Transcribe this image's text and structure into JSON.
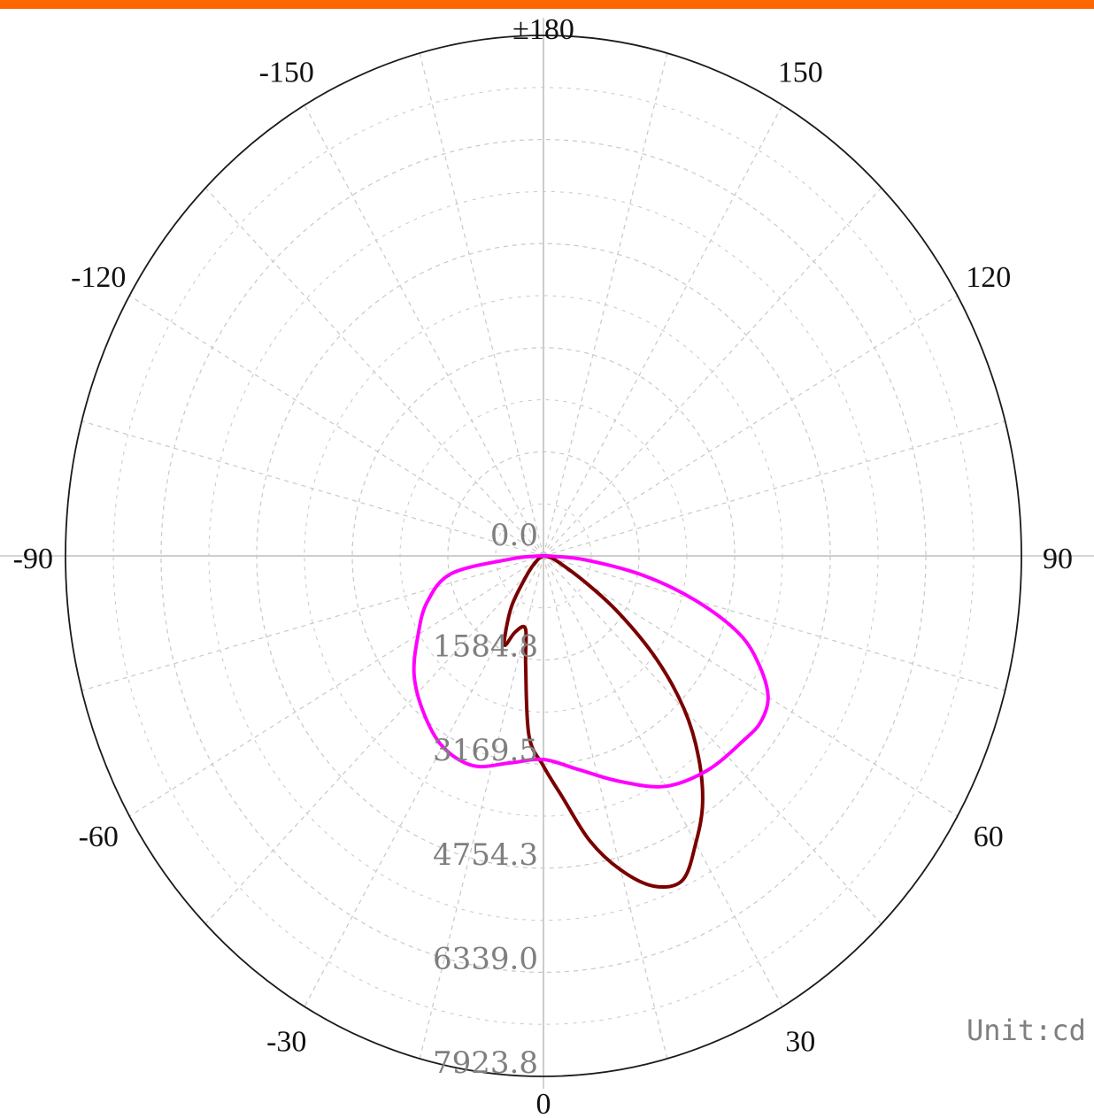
{
  "colors": {
    "top_bar": "#ff6600",
    "c0_c180_curve": "#7a0000",
    "c90_c270_curve": "#ff00ff",
    "grid": "#c8c8c8",
    "outer_circle": "#1a1a1a"
  },
  "chart_data": {
    "type": "polar",
    "unit_label": "Unit:cd",
    "radial_range": [
      0,
      7923.8
    ],
    "radial_tick_labels": [
      "0.0",
      "1584.8",
      "3169.5",
      "4754.3",
      "6339.0",
      "7923.8"
    ],
    "radial_tick_values": [
      0,
      1584.8,
      3169.5,
      4754.3,
      6339.0,
      7923.8
    ],
    "angle_tick_labels": [
      {
        "text": "0",
        "angle": 0
      },
      {
        "text": "30",
        "angle": 30
      },
      {
        "text": "60",
        "angle": 60
      },
      {
        "text": "90",
        "angle": 90
      },
      {
        "text": "120",
        "angle": 120
      },
      {
        "text": "150",
        "angle": 150
      },
      {
        "text": "±180",
        "angle": 180
      },
      {
        "text": "-150",
        "angle": -150
      },
      {
        "text": "-120",
        "angle": -120
      },
      {
        "text": "-90",
        "angle": -90
      },
      {
        "text": "-60",
        "angle": -60
      },
      {
        "text": "-30",
        "angle": -30
      }
    ],
    "angular_grid_step_deg": 15,
    "grid": true,
    "series": [
      {
        "color": "#7a0000",
        "points": [
          {
            "angle": -60,
            "value": 100
          },
          {
            "angle": -45,
            "value": 350
          },
          {
            "angle": -35,
            "value": 900
          },
          {
            "angle": -28,
            "value": 1350
          },
          {
            "angle": -25,
            "value": 1500
          },
          {
            "angle": -22,
            "value": 1250
          },
          {
            "angle": -15,
            "value": 1150
          },
          {
            "angle": -10,
            "value": 1700
          },
          {
            "angle": -5,
            "value": 2750
          },
          {
            "angle": 0,
            "value": 3200
          },
          {
            "angle": 5,
            "value": 3700
          },
          {
            "angle": 10,
            "value": 4400
          },
          {
            "angle": 15,
            "value": 4950
          },
          {
            "angle": 20,
            "value": 5350
          },
          {
            "angle": 25,
            "value": 5450
          },
          {
            "angle": 30,
            "value": 5050
          },
          {
            "angle": 35,
            "value": 4600
          },
          {
            "angle": 40,
            "value": 4000
          },
          {
            "angle": 45,
            "value": 3300
          },
          {
            "angle": 50,
            "value": 2450
          },
          {
            "angle": 55,
            "value": 1550
          },
          {
            "angle": 60,
            "value": 800
          },
          {
            "angle": 70,
            "value": 250
          },
          {
            "angle": 80,
            "value": 80
          }
        ]
      },
      {
        "color": "#ff00ff",
        "points": [
          {
            "angle": -88,
            "value": 120
          },
          {
            "angle": -85,
            "value": 550
          },
          {
            "angle": -80,
            "value": 1550
          },
          {
            "angle": -70,
            "value": 2050
          },
          {
            "angle": -60,
            "value": 2400
          },
          {
            "angle": -50,
            "value": 2800
          },
          {
            "angle": -40,
            "value": 3100
          },
          {
            "angle": -30,
            "value": 3350
          },
          {
            "angle": -20,
            "value": 3400
          },
          {
            "angle": -10,
            "value": 3200
          },
          {
            "angle": 0,
            "value": 3100
          },
          {
            "angle": 10,
            "value": 3300
          },
          {
            "angle": 20,
            "value": 3650
          },
          {
            "angle": 30,
            "value": 4050
          },
          {
            "angle": 40,
            "value": 4250
          },
          {
            "angle": 50,
            "value": 4350
          },
          {
            "angle": 55,
            "value": 4400
          },
          {
            "angle": 60,
            "value": 4300
          },
          {
            "angle": 65,
            "value": 3950
          },
          {
            "angle": 70,
            "value": 3450
          },
          {
            "angle": 75,
            "value": 2600
          },
          {
            "angle": 80,
            "value": 1650
          },
          {
            "angle": 85,
            "value": 700
          },
          {
            "angle": 88,
            "value": 150
          }
        ]
      }
    ]
  }
}
